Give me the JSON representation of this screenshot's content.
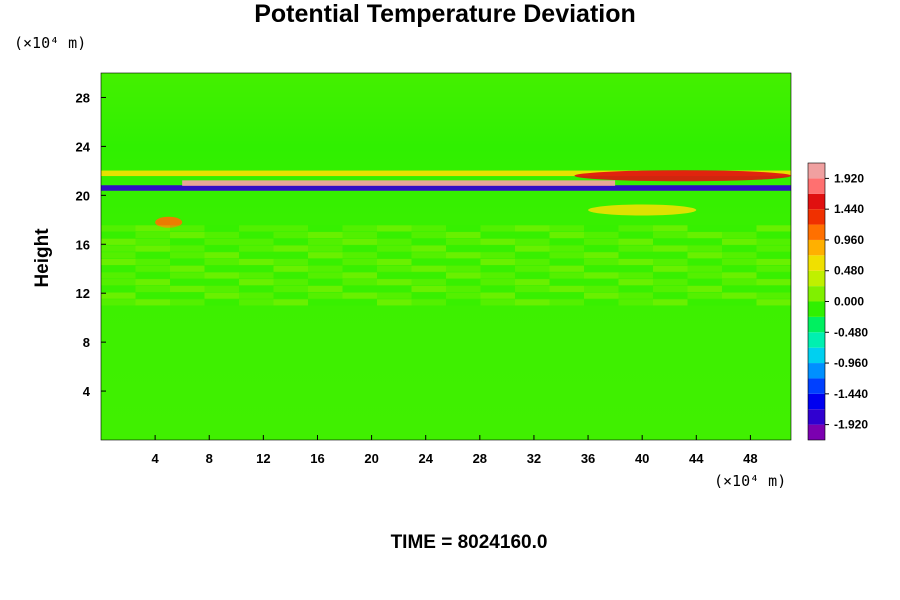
{
  "chart_data": {
    "type": "heatmap",
    "title": "Potential Temperature Deviation",
    "ylabel": "Height",
    "xlabel": "",
    "x_unit": "(×10⁴ m)",
    "y_unit": "(×10⁴ m)",
    "footer_label": "TIME =",
    "footer_value": "8024160.0",
    "xlim": [
      0,
      51
    ],
    "ylim": [
      0,
      30
    ],
    "x_ticks": [
      4,
      8,
      12,
      16,
      20,
      24,
      28,
      32,
      36,
      40,
      44,
      48
    ],
    "y_ticks": [
      4,
      8,
      12,
      16,
      20,
      24,
      28
    ],
    "colorbar": {
      "vmin": -2.16,
      "vmax": 2.16,
      "tick_values": [
        1.92,
        1.44,
        0.96,
        0.48,
        0.0,
        -0.48,
        -0.96,
        -1.44,
        -1.92
      ],
      "tick_labels": [
        "1.920",
        "1.440",
        "0.960",
        "0.480",
        "0.000",
        "-0.480",
        "-0.960",
        "-1.440",
        "-1.920"
      ],
      "colors": [
        "#7b00b0",
        "#3000d0",
        "#0000f0",
        "#0040ff",
        "#0090ff",
        "#00d0f0",
        "#00f0b0",
        "#00f060",
        "#30f000",
        "#80f000",
        "#c0f000",
        "#f0e000",
        "#ffb000",
        "#ff7000",
        "#f03000",
        "#e01010",
        "#ff7070",
        "#f0a0a0"
      ]
    },
    "background_value": 0.15,
    "features": [
      {
        "x": [
          0,
          51
        ],
        "y": 20.6,
        "value": -1.9,
        "note": "lower blue band"
      },
      {
        "x": [
          0,
          51
        ],
        "y": 21.8,
        "value": 0.7,
        "note": "upper warm band"
      },
      {
        "x": [
          6,
          38
        ],
        "y": 21.0,
        "value": 1.95,
        "note": "pink core"
      },
      {
        "x": [
          35,
          51
        ],
        "y": 21.6,
        "value": 1.5,
        "note": "red band east"
      },
      {
        "x": [
          4,
          6
        ],
        "y": 17.8,
        "value": 1.0,
        "note": "orange blob"
      },
      {
        "x": [
          36,
          44
        ],
        "y": 18.8,
        "value": 0.6,
        "note": "yellow patch"
      }
    ]
  }
}
